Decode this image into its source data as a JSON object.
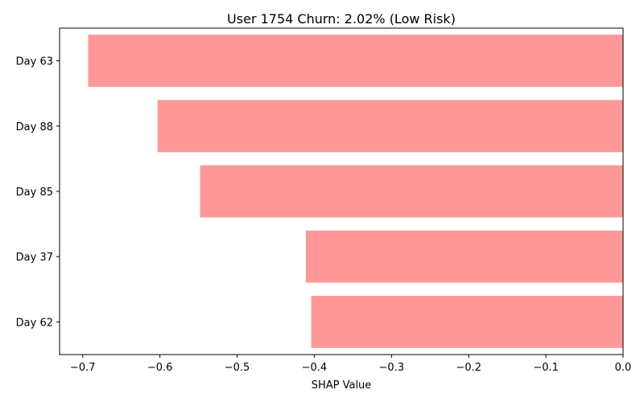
{
  "chart_data": {
    "type": "bar",
    "orientation": "horizontal",
    "title": "User 1754 Churn: 2.02% (Low Risk)",
    "xlabel": "SHAP Value",
    "ylabel": "",
    "categories": [
      "Day 63",
      "Day 88",
      "Day 85",
      "Day 37",
      "Day 62"
    ],
    "values": [
      -0.693,
      -0.603,
      -0.548,
      -0.411,
      -0.404
    ],
    "xlim": [
      -0.73,
      0.0
    ],
    "xticks": [
      -0.7,
      -0.6,
      -0.5,
      -0.4,
      -0.3,
      -0.2,
      -0.1,
      0.0
    ],
    "xtick_labels": [
      "−0.7",
      "−0.6",
      "−0.5",
      "−0.4",
      "−0.3",
      "−0.2",
      "−0.1",
      "0.0"
    ],
    "bar_color": "#ff9999",
    "grid": false,
    "legend": "none"
  }
}
